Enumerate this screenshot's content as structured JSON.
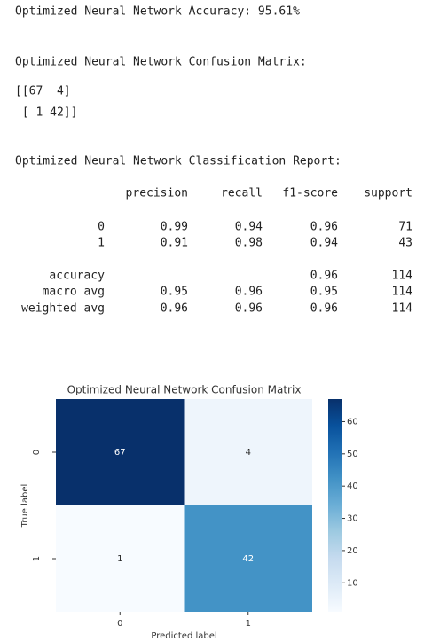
{
  "output": {
    "accuracy_line": "Optimized Neural Network Accuracy: 95.61%",
    "confusion_title": "Optimized Neural Network Confusion Matrix:",
    "confusion_text": [
      "[[67  4]",
      " [ 1 42]]"
    ],
    "report_title": "Optimized Neural Network Classification Report:",
    "report": {
      "header": [
        "precision",
        "recall",
        "f1-score",
        "support"
      ],
      "rows": [
        {
          "label": "0",
          "cells": [
            "0.99",
            "0.94",
            "0.96",
            "71"
          ]
        },
        {
          "label": "1",
          "cells": [
            "0.91",
            "0.98",
            "0.94",
            "43"
          ]
        },
        {
          "label": "accuracy",
          "cells": [
            null,
            null,
            "0.96",
            "114"
          ]
        },
        {
          "label": "macro avg",
          "cells": [
            "0.95",
            "0.96",
            "0.95",
            "114"
          ]
        },
        {
          "label": "weighted avg",
          "cells": [
            "0.96",
            "0.96",
            "0.96",
            "114"
          ]
        }
      ]
    }
  },
  "chart_data": {
    "type": "heatmap",
    "title": "Optimized Neural Network Confusion Matrix",
    "xlabel": "Predicted label",
    "ylabel": "True label",
    "x_categories": [
      "0",
      "1"
    ],
    "y_categories": [
      "0",
      "1"
    ],
    "values": [
      [
        67,
        4
      ],
      [
        1,
        42
      ]
    ],
    "colormap": "Blues",
    "clim": [
      1,
      67
    ],
    "colorbar_ticks": [
      10,
      20,
      30,
      40,
      50,
      60
    ]
  }
}
